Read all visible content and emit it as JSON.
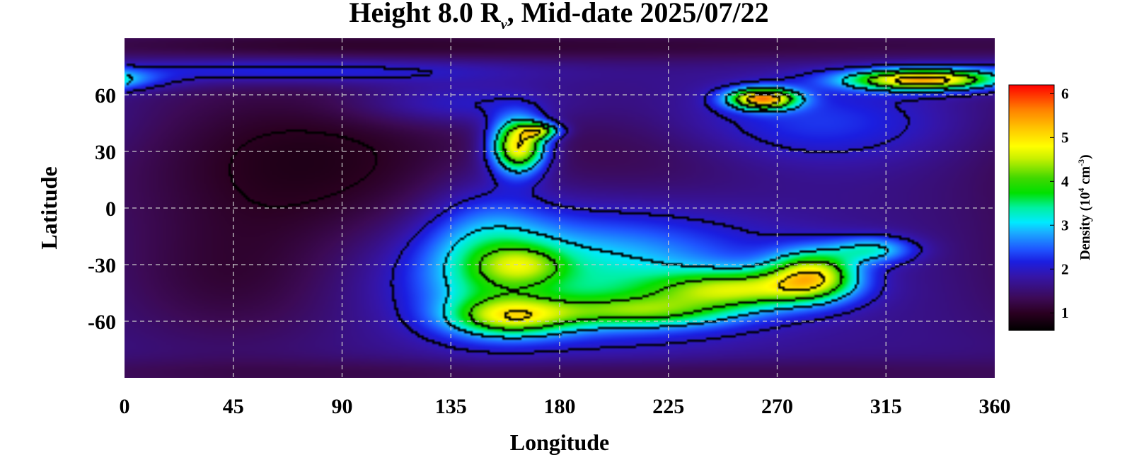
{
  "chart_data": {
    "type": "heatmap",
    "title": {
      "prefix": "Height 8.0 R",
      "subscript": "v",
      "suffix": ", Mid-date 2025/07/22"
    },
    "xlabel": "Longitude",
    "ylabel": "Latitude",
    "xlim": [
      0,
      360
    ],
    "ylim": [
      -90,
      90
    ],
    "x_ticks": [
      0,
      45,
      90,
      135,
      180,
      225,
      270,
      315,
      360
    ],
    "y_ticks": [
      60,
      30,
      0,
      -30,
      -60
    ],
    "y_tick_labels": [
      "60",
      "30",
      "0",
      "-30",
      "-60"
    ],
    "x_tick_labels": [
      "0",
      "45",
      "90",
      "135",
      "180",
      "225",
      "270",
      "315",
      "360"
    ],
    "grid": true,
    "contours": true,
    "colorbar": {
      "label_prefix": "Density (10",
      "label_exp1": "4",
      "label_mid": " cm",
      "label_exp2": "-3",
      "label_suffix": ")",
      "range": [
        0.6,
        6.2
      ],
      "ticks": [
        1,
        2,
        3,
        4,
        5,
        6
      ],
      "tick_labels": [
        "1",
        "2",
        "3",
        "4",
        "5",
        "6"
      ],
      "colormap": [
        [
          0.0,
          "#000000"
        ],
        [
          0.07,
          "#2a0020"
        ],
        [
          0.13,
          "#3c0a55"
        ],
        [
          0.22,
          "#3515a8"
        ],
        [
          0.28,
          "#1b1ee0"
        ],
        [
          0.33,
          "#1f55ff"
        ],
        [
          0.4,
          "#1aaeff"
        ],
        [
          0.44,
          "#00eaff"
        ],
        [
          0.5,
          "#00f0a0"
        ],
        [
          0.56,
          "#00e000"
        ],
        [
          0.62,
          "#40d800"
        ],
        [
          0.7,
          "#c8f000"
        ],
        [
          0.75,
          "#ffff00"
        ],
        [
          0.82,
          "#ffc800"
        ],
        [
          0.9,
          "#ff8000"
        ],
        [
          1.0,
          "#ff0000"
        ]
      ]
    },
    "background_density": 1.65,
    "features": [
      {
        "name": "north-polar-dark",
        "lon": 180,
        "lat": 86,
        "sx": 220,
        "sy": 6,
        "amp": -0.5
      },
      {
        "name": "north-band",
        "lon": 70,
        "lat": 73,
        "sx": 60,
        "sy": 5,
        "amp": 0.8
      },
      {
        "name": "north-band-arc",
        "lon": 135,
        "lat": 55,
        "sx": 30,
        "sy": 8,
        "amp": 0.6
      },
      {
        "name": "west-cavity",
        "lon": 75,
        "lat": 25,
        "sx": 55,
        "sy": 33,
        "amp": -0.75
      },
      {
        "name": "sw-cavity",
        "lon": 45,
        "lat": -40,
        "sx": 35,
        "sy": 25,
        "amp": -0.45
      },
      {
        "name": "mid-cavity",
        "lon": 215,
        "lat": 28,
        "sx": 40,
        "sy": 20,
        "amp": -0.35
      },
      {
        "name": "south-polar-dark",
        "lon": 180,
        "lat": -88,
        "sx": 200,
        "sy": 6,
        "amp": -0.4
      },
      {
        "name": "blob-165-30",
        "lon": 163,
        "lat": 33,
        "sx": 8,
        "sy": 10,
        "amp": 3.6
      },
      {
        "name": "blob-170-42",
        "lon": 172,
        "lat": 41,
        "sx": 6,
        "sy": 3,
        "amp": 2.0
      },
      {
        "name": "blob-265-58",
        "lon": 264,
        "lat": 58,
        "sx": 10,
        "sy": 4,
        "amp": 3.7
      },
      {
        "name": "arc-330-68",
        "lon": 330,
        "lat": 68,
        "sx": 22,
        "sy": 4,
        "amp": 3.6
      },
      {
        "name": "ne-diffuse",
        "lon": 285,
        "lat": 45,
        "sx": 40,
        "sy": 15,
        "amp": 0.7
      },
      {
        "name": "south-cloud",
        "lon": 190,
        "lat": -35,
        "sx": 50,
        "sy": 22,
        "amp": 1.6
      },
      {
        "name": "south-cloud-w",
        "lon": 150,
        "lat": -25,
        "sx": 18,
        "sy": 25,
        "amp": 1.1
      },
      {
        "name": "south-green-w",
        "lon": 160,
        "lat": -58,
        "sx": 18,
        "sy": 7,
        "amp": 2.0
      },
      {
        "name": "south-green-w2",
        "lon": 165,
        "lat": -30,
        "sx": 12,
        "sy": 7,
        "amp": 1.0
      },
      {
        "name": "streamer-1",
        "lon": 215,
        "lat": -55,
        "sx": 28,
        "sy": 6,
        "amp": 1.6
      },
      {
        "name": "streamer-2",
        "lon": 255,
        "lat": -43,
        "sx": 25,
        "sy": 7,
        "amp": 2.2
      },
      {
        "name": "yellow-patch",
        "lon": 285,
        "lat": -35,
        "sx": 13,
        "sy": 9,
        "amp": 2.7
      },
      {
        "name": "streamer-tip",
        "lon": 310,
        "lat": -22,
        "sx": 12,
        "sy": 5,
        "amp": 1.4
      }
    ]
  }
}
